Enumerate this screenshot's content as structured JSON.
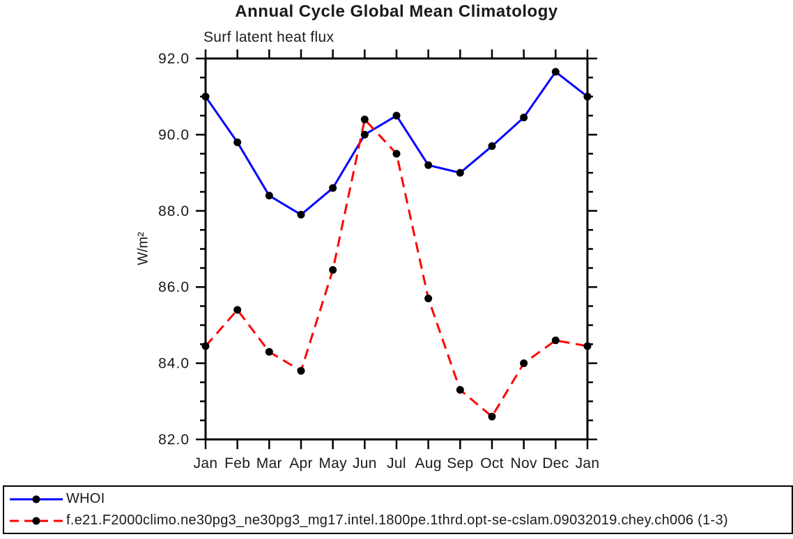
{
  "chart": {
    "title": "Annual Cycle Global Mean Climatology",
    "subtitle": "Surf latent heat flux",
    "ylabel": "W/m²"
  },
  "legend": {
    "items": [
      {
        "label": "WHOI",
        "color": "#0000ff",
        "style": "solid",
        "marker_color": "#000000"
      },
      {
        "label": "f.e21.F2000climo.ne30pg3_ne30pg3_mg17.intel.1800pe.1thrd.opt-se-cslam.09032019.chey.ch006 (1-3)",
        "color": "#ff0000",
        "style": "dashed",
        "marker_color": "#000000"
      }
    ]
  },
  "chart_data": {
    "type": "line",
    "title": "Annual Cycle Global Mean Climatology",
    "subtitle": "Surf latent heat flux",
    "xlabel": "",
    "ylabel": "W/m²",
    "categories": [
      "Jan",
      "Feb",
      "Mar",
      "Apr",
      "May",
      "Jun",
      "Jul",
      "Aug",
      "Sep",
      "Oct",
      "Nov",
      "Dec",
      "Jan"
    ],
    "series": [
      {
        "name": "WHOI",
        "color": "#0000ff",
        "style": "solid",
        "values": [
          91.0,
          89.8,
          88.4,
          87.9,
          88.6,
          90.0,
          90.5,
          89.2,
          89.0,
          89.7,
          90.45,
          91.65,
          91.0
        ]
      },
      {
        "name": "f.e21.F2000climo.ne30pg3_ne30pg3_mg17.intel.1800pe.1thrd.opt-se-cslam.09032019.chey.ch006 (1-3)",
        "color": "#ff0000",
        "style": "dashed",
        "values": [
          84.45,
          85.4,
          84.3,
          83.8,
          86.45,
          90.4,
          89.5,
          85.7,
          83.3,
          82.6,
          84.0,
          84.6,
          84.45
        ]
      }
    ],
    "ylim": [
      82.0,
      92.0
    ],
    "ytick_labels": [
      "82.0",
      "84.0",
      "86.0",
      "88.0",
      "90.0",
      "92.0"
    ],
    "yticks_major": [
      82.0,
      84.0,
      86.0,
      88.0,
      90.0,
      92.0
    ],
    "ytick_minor_step": 0.5,
    "marker": "filled-circle",
    "marker_color": "#000000",
    "axis_color": "#000000",
    "grid": false,
    "legend_position": "bottom"
  }
}
